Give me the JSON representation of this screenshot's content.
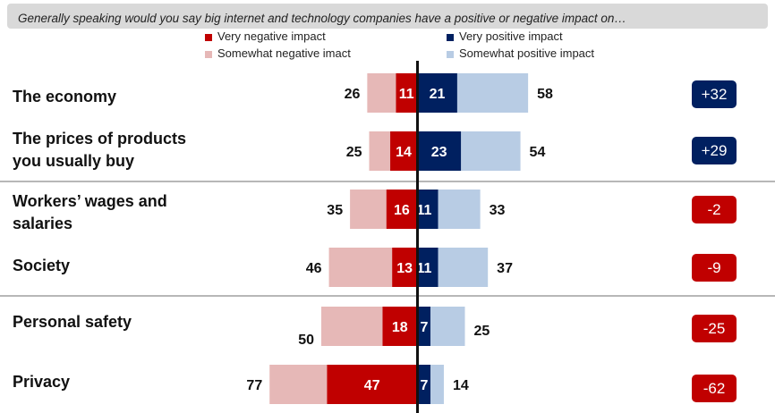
{
  "question": "Generally speaking would you say big internet and technology companies have a positive or negative impact on…",
  "legend": {
    "very_negative": "Very negative impact",
    "somewhat_negative": "Somewhat negative imact",
    "very_positive": "Very positive impact",
    "somewhat_positive": "Somewhat positive impact"
  },
  "colors": {
    "very_negative": "#c00000",
    "somewhat_negative": "#e6b8b7",
    "very_positive": "#002060",
    "somewhat_positive": "#b8cce4",
    "net_positive_bg": "#002060",
    "net_negative_bg": "#c00000"
  },
  "chart_data": {
    "type": "bar",
    "orientation": "horizontal-diverging",
    "categories": [
      "The economy",
      "The prices of products you usually buy",
      "Workers’ wages and salaries",
      "Society",
      "Personal safety",
      "Privacy"
    ],
    "label_lines": [
      [
        "The economy"
      ],
      [
        "The prices of products",
        "you usually buy"
      ],
      [
        "Workers’ wages and",
        "salaries"
      ],
      [
        "Society"
      ],
      [
        "Personal safety"
      ],
      [
        "Privacy"
      ]
    ],
    "series": [
      {
        "name": "Very negative impact",
        "values": [
          11,
          14,
          16,
          13,
          18,
          47
        ]
      },
      {
        "name": "Somewhat negative imact",
        "values": [
          15,
          11,
          19,
          33,
          32,
          30
        ]
      },
      {
        "name": "Very positive impact",
        "values": [
          21,
          23,
          11,
          11,
          7,
          7
        ]
      },
      {
        "name": "Somewhat positive impact",
        "values": [
          37,
          31,
          22,
          26,
          18,
          7
        ]
      }
    ],
    "total_negative": [
      26,
      25,
      35,
      46,
      50,
      77
    ],
    "total_positive": [
      58,
      54,
      33,
      37,
      25,
      14
    ],
    "net": [
      "+32",
      "+29",
      "-2",
      "-9",
      "-25",
      "-62"
    ],
    "net_sign": [
      "positive",
      "positive",
      "negative",
      "negative",
      "negative",
      "negative"
    ]
  }
}
